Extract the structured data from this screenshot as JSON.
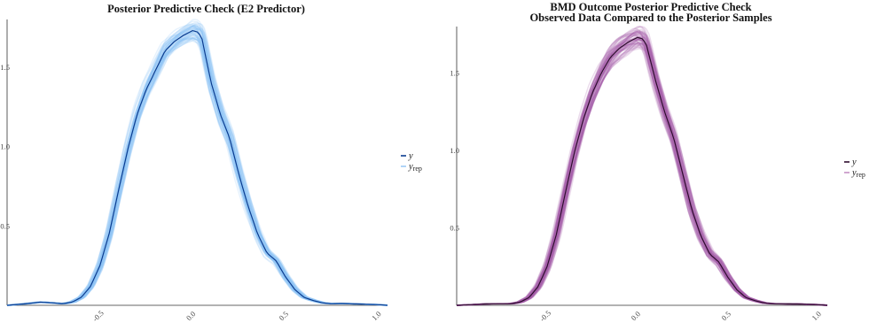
{
  "chart_data": [
    {
      "type": "line",
      "title": [
        "Posterior Predictive Check (E2 Predictor)"
      ],
      "xlabel": "",
      "ylabel": "",
      "xlim": [
        -1.0,
        1.05
      ],
      "ylim": [
        0.0,
        1.8
      ],
      "x_ticks": [
        -0.5,
        0.0,
        0.5,
        1.0
      ],
      "x_tick_labels": [
        "-0.5",
        "0.0",
        "0.5",
        "1.0"
      ],
      "y_ticks": [
        0.5,
        1.0,
        1.5
      ],
      "y_tick_labels": [
        "0.5",
        "1.0",
        "1.5"
      ],
      "grid": false,
      "legend_position": "right",
      "legend": [
        {
          "label": "y",
          "sub": "",
          "color": "#0b3d91"
        },
        {
          "label": "y",
          "sub": "rep",
          "color": "#9cc9f5"
        }
      ],
      "colors": {
        "y": "#0b3d91",
        "yrep": "#8ec2f8"
      },
      "band_halfwidth": 0.04,
      "series": [
        {
          "name": "y",
          "x": [
            -1.0,
            -0.9,
            -0.82,
            -0.75,
            -0.7,
            -0.65,
            -0.6,
            -0.55,
            -0.5,
            -0.45,
            -0.4,
            -0.35,
            -0.3,
            -0.25,
            -0.2,
            -0.15,
            -0.1,
            -0.05,
            0.0,
            0.03,
            0.05,
            0.1,
            0.15,
            0.2,
            0.25,
            0.3,
            0.35,
            0.4,
            0.45,
            0.5,
            0.55,
            0.6,
            0.65,
            0.7,
            0.75,
            0.8,
            0.9,
            1.0,
            1.05
          ],
          "y": [
            0.0,
            0.01,
            0.02,
            0.015,
            0.01,
            0.02,
            0.05,
            0.12,
            0.25,
            0.45,
            0.72,
            0.98,
            1.2,
            1.36,
            1.48,
            1.6,
            1.66,
            1.7,
            1.73,
            1.72,
            1.68,
            1.4,
            1.2,
            1.05,
            0.82,
            0.62,
            0.45,
            0.33,
            0.28,
            0.18,
            0.1,
            0.05,
            0.03,
            0.015,
            0.01,
            0.012,
            0.008,
            0.004,
            0.0
          ]
        }
      ]
    },
    {
      "type": "line",
      "title": [
        "BMD Outcome Posterior Predictive Check",
        "Observed Data Compared to the Posterior Samples"
      ],
      "xlabel": "",
      "ylabel": "",
      "xlim": [
        -1.0,
        1.05
      ],
      "ylim": [
        0.0,
        1.8
      ],
      "x_ticks": [
        -0.5,
        0.0,
        0.5,
        1.0
      ],
      "x_tick_labels": [
        "-0.5",
        "0.0",
        "0.5",
        "1.0"
      ],
      "y_ticks": [
        0.5,
        1.0,
        1.5
      ],
      "y_tick_labels": [
        "0.5",
        "1.0",
        "1.5"
      ],
      "grid": false,
      "legend_position": "right",
      "legend": [
        {
          "label": "y",
          "sub": "",
          "color": "#2e0d2e"
        },
        {
          "label": "y",
          "sub": "rep",
          "color": "#c58fc5"
        }
      ],
      "colors": {
        "y": "#2e0d2e",
        "yrep": "#a45aa8"
      },
      "band_halfwidth": 0.045,
      "series": [
        {
          "name": "y",
          "x": [
            -1.0,
            -0.9,
            -0.82,
            -0.75,
            -0.7,
            -0.65,
            -0.6,
            -0.55,
            -0.5,
            -0.45,
            -0.4,
            -0.35,
            -0.3,
            -0.25,
            -0.2,
            -0.15,
            -0.1,
            -0.05,
            0.0,
            0.03,
            0.05,
            0.1,
            0.15,
            0.2,
            0.25,
            0.3,
            0.35,
            0.4,
            0.45,
            0.5,
            0.55,
            0.6,
            0.65,
            0.7,
            0.75,
            0.8,
            0.9,
            1.0,
            1.05
          ],
          "y": [
            0.0,
            0.005,
            0.01,
            0.01,
            0.01,
            0.02,
            0.05,
            0.12,
            0.25,
            0.45,
            0.72,
            0.98,
            1.2,
            1.37,
            1.5,
            1.6,
            1.66,
            1.7,
            1.73,
            1.72,
            1.68,
            1.45,
            1.25,
            1.08,
            0.85,
            0.62,
            0.45,
            0.33,
            0.28,
            0.18,
            0.1,
            0.05,
            0.03,
            0.015,
            0.01,
            0.01,
            0.008,
            0.004,
            0.0
          ]
        }
      ]
    }
  ]
}
